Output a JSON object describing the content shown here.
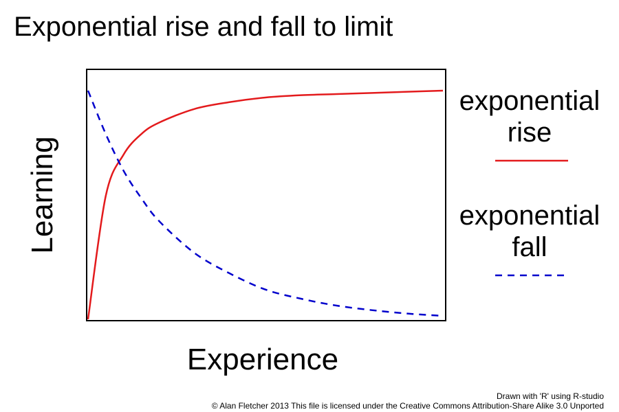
{
  "chart_data": {
    "type": "line",
    "title": "Exponential rise and fall to limit",
    "xlabel": "Experience",
    "ylabel": "Learning",
    "xlim": [
      0,
      1
    ],
    "ylim": [
      0,
      1
    ],
    "grid": false,
    "axes_ticks": false,
    "legend_position": "right",
    "series": [
      {
        "name": "exponential rise",
        "legend_lines": [
          "exponential",
          "rise"
        ],
        "color": "#e31a1c",
        "line_style": "solid",
        "x": [
          0,
          0.05,
          0.1,
          0.15,
          0.2,
          0.3,
          0.4,
          0.5,
          0.6,
          0.7,
          0.8,
          0.9,
          1.0
        ],
        "y": [
          0,
          0.54,
          0.72,
          0.81,
          0.86,
          0.92,
          0.95,
          0.97,
          0.98,
          0.985,
          0.99,
          0.995,
          1.0
        ]
      },
      {
        "name": "exponential fall",
        "legend_lines": [
          "exponential",
          "fall"
        ],
        "color": "#0000cc",
        "line_style": "dashed",
        "x": [
          0,
          0.05,
          0.1,
          0.15,
          0.2,
          0.3,
          0.4,
          0.5,
          0.6,
          0.7,
          0.8,
          0.9,
          1.0
        ],
        "y": [
          1.0,
          0.81,
          0.65,
          0.53,
          0.43,
          0.29,
          0.2,
          0.13,
          0.09,
          0.06,
          0.04,
          0.025,
          0.015
        ]
      }
    ]
  },
  "credits": {
    "line1": "Drawn with 'R' using R-studio",
    "line2": "© Alan Fletcher 2013 This file is licensed under the Creative Commons Attribution-Share Alike 3.0 Unported"
  }
}
